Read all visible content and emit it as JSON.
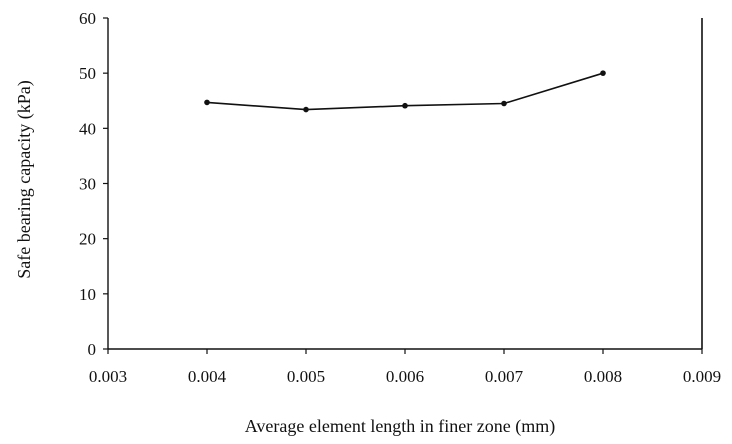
{
  "chart_data": {
    "type": "line",
    "title": "",
    "xlabel": "Average element length in finer zone  (mm)",
    "ylabel": "Safe bearing capacity (kPa)",
    "xlim": [
      0.003,
      0.009
    ],
    "ylim": [
      0,
      60
    ],
    "x_ticks": [
      "0.003",
      "0.004",
      "0.005",
      "0.006",
      "0.007",
      "0.008",
      "0.009"
    ],
    "y_ticks": [
      "0",
      "10",
      "20",
      "30",
      "40",
      "50",
      "60"
    ],
    "grid": false,
    "legend": "none",
    "series": [
      {
        "x": [
          0.004,
          0.005,
          0.006,
          0.007,
          0.008
        ],
        "y": [
          44.7,
          43.4,
          44.1,
          44.5,
          50.0
        ]
      }
    ],
    "colors": {
      "line": "#111111",
      "axis": "#111111",
      "text": "#111111"
    }
  }
}
